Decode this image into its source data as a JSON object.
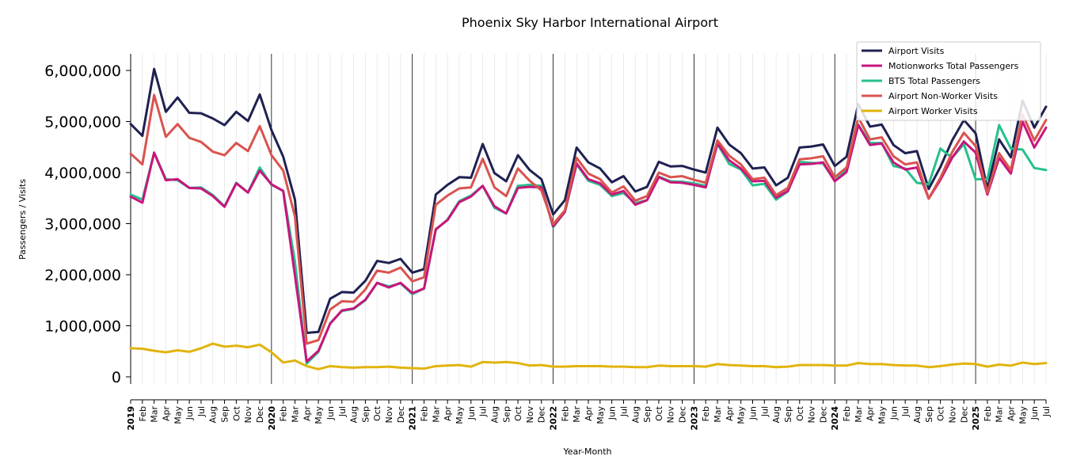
{
  "chart_data": {
    "type": "line",
    "title": "Phoenix Sky Harbor International Airport",
    "xlabel": "Year-Month",
    "ylabel": "Passengers / Visits",
    "ylim": [
      -450000,
      6300000
    ],
    "yticks": [
      0,
      1000000,
      2000000,
      3000000,
      4000000,
      5000000,
      6000000
    ],
    "ytick_labels": [
      "0",
      "1,000,000",
      "2,000,000",
      "3,000,000",
      "4,000,000",
      "5,000,000",
      "6,000,000"
    ],
    "x_range": [
      "2019-01",
      "2025-07"
    ],
    "year_starts": [
      "2019",
      "2020",
      "2021",
      "2022",
      "2023",
      "2024",
      "2025"
    ],
    "month_abbr": [
      "Jan",
      "Feb",
      "Mar",
      "Apr",
      "May",
      "Jun",
      "Jul",
      "Aug",
      "Sep",
      "Oct",
      "Nov",
      "Dec"
    ],
    "grid": "vertical monthly lines; black lines at each January",
    "legend_position": "top-right",
    "series": [
      {
        "name": "Airport Visits",
        "color": "#1f2151",
        "values": [
          4950000,
          4720000,
          6030000,
          5190000,
          5470000,
          5170000,
          5160000,
          5060000,
          4930000,
          5190000,
          5010000,
          5530000,
          4830000,
          4310000,
          3470000,
          860000,
          880000,
          1530000,
          1660000,
          1650000,
          1880000,
          2270000,
          2230000,
          2310000,
          2040000,
          2110000,
          3570000,
          3760000,
          3910000,
          3900000,
          4560000,
          3990000,
          3830000,
          4340000,
          4050000,
          3870000,
          3180000,
          3460000,
          4490000,
          4200000,
          4080000,
          3810000,
          3930000,
          3630000,
          3720000,
          4210000,
          4120000,
          4130000,
          4060000,
          4000000,
          4880000,
          4550000,
          4380000,
          4080000,
          4100000,
          3750000,
          3900000,
          4490000,
          4510000,
          4550000,
          4130000,
          4310000,
          5340000,
          4900000,
          4940000,
          4540000,
          4380000,
          4420000,
          3680000,
          4110000,
          4630000,
          5030000,
          4770000,
          3680000,
          4650000,
          4300000,
          5410000,
          4880000,
          5290000
        ]
      },
      {
        "name": "Motionworks Total Passengers",
        "color": "#c8157c",
        "values": [
          3530000,
          3410000,
          4390000,
          3850000,
          3870000,
          3700000,
          3690000,
          3540000,
          3330000,
          3790000,
          3610000,
          4040000,
          3770000,
          3640000,
          1980000,
          300000,
          510000,
          1040000,
          1300000,
          1340000,
          1510000,
          1840000,
          1750000,
          1840000,
          1640000,
          1730000,
          2890000,
          3070000,
          3420000,
          3530000,
          3740000,
          3340000,
          3200000,
          3700000,
          3720000,
          3710000,
          2950000,
          3230000,
          4180000,
          3870000,
          3790000,
          3570000,
          3640000,
          3370000,
          3460000,
          3910000,
          3810000,
          3800000,
          3760000,
          3710000,
          4570000,
          4240000,
          4080000,
          3830000,
          3840000,
          3510000,
          3640000,
          4160000,
          4170000,
          4200000,
          3830000,
          4010000,
          4930000,
          4540000,
          4570000,
          4200000,
          4060000,
          4100000,
          3490000,
          3860000,
          4290000,
          4610000,
          4390000,
          3570000,
          4290000,
          3980000,
          5000000,
          4490000,
          4880000
        ]
      },
      {
        "name": "BTS Total Passengers",
        "color": "#26c08c",
        "values": [
          3570000,
          3470000,
          4390000,
          3870000,
          3850000,
          3700000,
          3710000,
          3560000,
          3340000,
          3800000,
          3610000,
          4100000,
          3760000,
          3640000,
          2250000,
          260000,
          490000,
          1050000,
          1290000,
          1330000,
          1500000,
          1840000,
          1770000,
          1830000,
          1620000,
          1730000,
          2880000,
          3080000,
          3440000,
          3550000,
          3740000,
          3310000,
          3200000,
          3740000,
          3760000,
          3740000,
          2930000,
          3230000,
          4160000,
          3840000,
          3760000,
          3540000,
          3600000,
          3400000,
          3460000,
          3920000,
          3830000,
          3820000,
          3790000,
          3740000,
          4560000,
          4170000,
          4060000,
          3750000,
          3780000,
          3470000,
          3630000,
          4210000,
          4190000,
          4180000,
          3840000,
          4050000,
          4940000,
          4580000,
          4580000,
          4130000,
          4080000,
          3800000,
          3770000,
          4470000,
          4290000,
          4560000,
          3870000,
          3870000,
          4930000,
          4470000,
          4450000,
          4090000,
          4050000
        ]
      },
      {
        "name": "Airport Non-Worker Visits",
        "color": "#d9534f",
        "values": [
          4370000,
          4160000,
          5520000,
          4700000,
          4950000,
          4680000,
          4600000,
          4410000,
          4340000,
          4580000,
          4420000,
          4910000,
          4340000,
          4040000,
          3140000,
          650000,
          720000,
          1320000,
          1480000,
          1470000,
          1710000,
          2080000,
          2040000,
          2140000,
          1870000,
          1950000,
          3370000,
          3550000,
          3690000,
          3710000,
          4270000,
          3710000,
          3540000,
          4080000,
          3840000,
          3650000,
          2990000,
          3260000,
          4290000,
          3980000,
          3870000,
          3610000,
          3730000,
          3450000,
          3540000,
          4000000,
          3910000,
          3930000,
          3860000,
          3800000,
          4630000,
          4330000,
          4160000,
          3870000,
          3900000,
          3560000,
          3700000,
          4260000,
          4280000,
          4320000,
          3910000,
          4100000,
          5080000,
          4650000,
          4690000,
          4320000,
          4160000,
          4200000,
          3490000,
          3900000,
          4400000,
          4780000,
          4520000,
          3600000,
          4380000,
          4050000,
          5140000,
          4630000,
          5030000
        ]
      },
      {
        "name": "Airport Worker Visits",
        "color": "#e1b40d",
        "values": [
          560000,
          550000,
          510000,
          480000,
          520000,
          490000,
          560000,
          650000,
          590000,
          610000,
          580000,
          630000,
          480000,
          280000,
          320000,
          210000,
          150000,
          210000,
          190000,
          180000,
          190000,
          190000,
          200000,
          180000,
          170000,
          160000,
          210000,
          220000,
          230000,
          200000,
          290000,
          280000,
          290000,
          270000,
          220000,
          230000,
          200000,
          200000,
          210000,
          210000,
          210000,
          200000,
          200000,
          190000,
          190000,
          220000,
          210000,
          210000,
          210000,
          200000,
          250000,
          230000,
          220000,
          210000,
          210000,
          190000,
          200000,
          230000,
          230000,
          230000,
          220000,
          220000,
          270000,
          250000,
          250000,
          230000,
          220000,
          220000,
          190000,
          210000,
          240000,
          260000,
          250000,
          200000,
          240000,
          220000,
          280000,
          250000,
          270000
        ]
      }
    ]
  }
}
